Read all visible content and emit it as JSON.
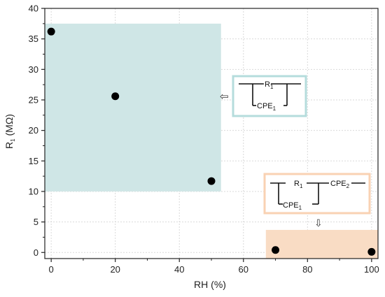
{
  "chart_data": {
    "type": "scatter",
    "title": "",
    "xlabel": "RH (%)",
    "ylabel_main": "R",
    "ylabel_sub": "1",
    "ylabel_unit": " (MΩ)",
    "xlim": [
      -2,
      102
    ],
    "ylim": [
      -1,
      40
    ],
    "xticks": [
      0,
      20,
      40,
      60,
      80,
      100
    ],
    "yticks": [
      0,
      5,
      10,
      15,
      20,
      25,
      30,
      35,
      40
    ],
    "grid": true,
    "series": [
      {
        "x": [
          0,
          20,
          50,
          70,
          100
        ],
        "y": [
          36.2,
          25.6,
          11.7,
          0.4,
          0.1
        ]
      }
    ],
    "regions": [
      {
        "x": [
          -2,
          53
        ],
        "y": [
          10,
          37.5
        ],
        "color": "#cfe6e6"
      },
      {
        "x": [
          67,
          102
        ],
        "y": [
          -1,
          3.7
        ],
        "color": "#f9dcc4"
      }
    ],
    "annotations": [
      {
        "r_label": "R",
        "r_sub": "1",
        "cpe_label": "CPE",
        "cpe_sub": "1",
        "border": "#b5dcdc",
        "arrow": "⇦"
      },
      {
        "r_label": "R",
        "r_sub": "1",
        "cpe_label": "CPE",
        "cpe_sub": "1",
        "cpe2_label": "CPE",
        "cpe2_sub": "2",
        "border": "#f9d2b3",
        "arrow": "⇩"
      }
    ]
  }
}
